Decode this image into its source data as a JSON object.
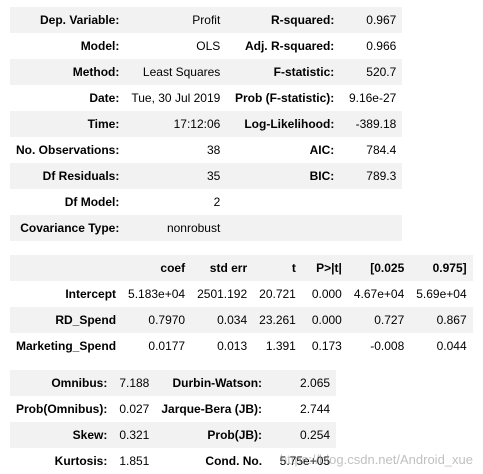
{
  "summary": {
    "rows": [
      {
        "l1": "Dep. Variable:",
        "v1": "Profit",
        "l2": "R-squared:",
        "v2": "0.967"
      },
      {
        "l1": "Model:",
        "v1": "OLS",
        "l2": "Adj. R-squared:",
        "v2": "0.966"
      },
      {
        "l1": "Method:",
        "v1": "Least Squares",
        "l2": "F-statistic:",
        "v2": "520.7"
      },
      {
        "l1": "Date:",
        "v1": "Tue, 30 Jul 2019",
        "l2": "Prob (F-statistic):",
        "v2": "9.16e-27"
      },
      {
        "l1": "Time:",
        "v1": "17:12:06",
        "l2": "Log-Likelihood:",
        "v2": "-389.18"
      },
      {
        "l1": "No. Observations:",
        "v1": "38",
        "l2": "AIC:",
        "v2": "784.4"
      },
      {
        "l1": "Df Residuals:",
        "v1": "35",
        "l2": "BIC:",
        "v2": "789.3"
      },
      {
        "l1": "Df Model:",
        "v1": "2",
        "l2": "",
        "v2": ""
      },
      {
        "l1": "Covariance Type:",
        "v1": "nonrobust",
        "l2": "",
        "v2": ""
      }
    ]
  },
  "coef": {
    "headers": [
      "",
      "coef",
      "std err",
      "t",
      "P>|t|",
      "[0.025",
      "0.975]"
    ],
    "rows": [
      {
        "name": "Intercept",
        "coef": "5.183e+04",
        "stderr": "2501.192",
        "t": "20.721",
        "p": "0.000",
        "lo": "4.67e+04",
        "hi": "5.69e+04"
      },
      {
        "name": "RD_Spend",
        "coef": "0.7970",
        "stderr": "0.034",
        "t": "23.261",
        "p": "0.000",
        "lo": "0.727",
        "hi": "0.867"
      },
      {
        "name": "Marketing_Spend",
        "coef": "0.0177",
        "stderr": "0.013",
        "t": "1.391",
        "p": "0.173",
        "lo": "-0.008",
        "hi": "0.044"
      }
    ]
  },
  "diagnostics": {
    "rows": [
      {
        "l1": "Omnibus:",
        "v1": "7.188",
        "l2": "Durbin-Watson:",
        "v2": "2.065"
      },
      {
        "l1": "Prob(Omnibus):",
        "v1": "0.027",
        "l2": "Jarque-Bera (JB):",
        "v2": "2.744"
      },
      {
        "l1": "Skew:",
        "v1": "0.321",
        "l2": "Prob(JB):",
        "v2": "0.254"
      },
      {
        "l1": "Kurtosis:",
        "v1": "1.851",
        "l2": "Cond. No.",
        "v2": "5.75e+05"
      }
    ]
  },
  "watermark": "https://blog.csdn.net/Android_xue"
}
